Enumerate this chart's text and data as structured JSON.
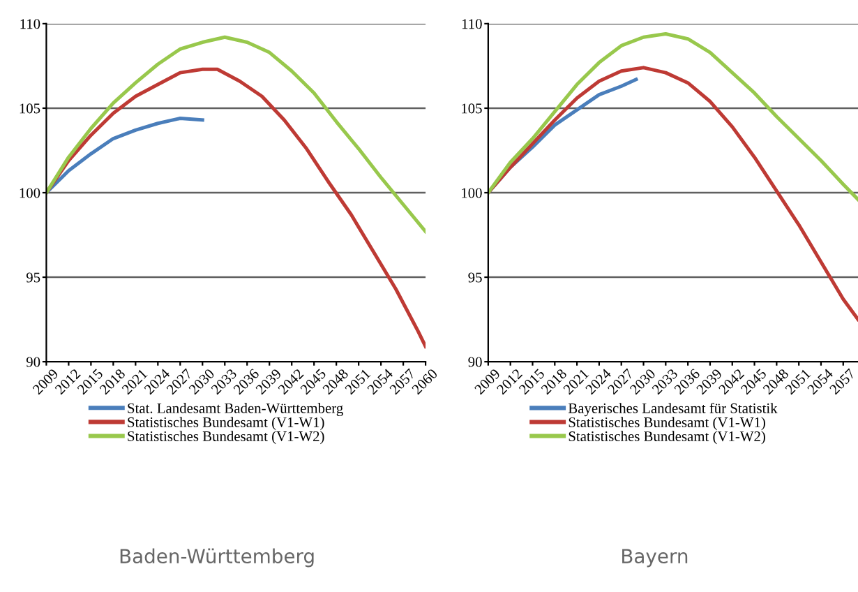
{
  "chart_data": [
    {
      "type": "line",
      "xlim": [
        2009,
        2060
      ],
      "xticks": [
        2009,
        2012,
        2015,
        2018,
        2021,
        2024,
        2027,
        2030,
        2033,
        2036,
        2039,
        2042,
        2045,
        2048,
        2051,
        2054,
        2057,
        2060
      ],
      "ylim": [
        90,
        110
      ],
      "yticks": [
        90,
        95,
        100,
        105,
        110
      ],
      "grid": "y",
      "legend": "bottom",
      "line_style": "solid",
      "annotations": [
        "Baden-Württemberg"
      ],
      "series": [
        {
          "name": "Stat. Landesamt Baden-Württemberg",
          "color": "#4a7ebb",
          "x": [
            2009,
            2012,
            2015,
            2018,
            2021,
            2024,
            2027,
            2030
          ],
          "values": [
            100,
            101.3,
            102.3,
            103.2,
            103.7,
            104.1,
            104.4,
            104.3
          ]
        },
        {
          "name": "Statistisches Bundesamt (V1-W1)",
          "color": "#be3a34",
          "x": [
            2009,
            2012,
            2015,
            2018,
            2021,
            2024,
            2027,
            2030,
            2032,
            2035,
            2038,
            2041,
            2044,
            2047,
            2050,
            2053,
            2056,
            2059,
            2060
          ],
          "values": [
            100,
            101.9,
            103.4,
            104.7,
            105.7,
            106.4,
            107.1,
            107.3,
            107.3,
            106.6,
            105.7,
            104.3,
            102.6,
            100.6,
            98.7,
            96.5,
            94.3,
            91.8,
            90.9
          ]
        },
        {
          "name": "Statistisches Bundesamt (V1-W2)",
          "color": "#98c84c",
          "x": [
            2009,
            2012,
            2015,
            2018,
            2021,
            2024,
            2027,
            2030,
            2033,
            2036,
            2039,
            2042,
            2045,
            2048,
            2051,
            2054,
            2057,
            2060
          ],
          "values": [
            100,
            102.1,
            103.8,
            105.3,
            106.5,
            107.6,
            108.5,
            108.9,
            109.2,
            108.9,
            108.3,
            107.2,
            105.9,
            104.2,
            102.6,
            100.9,
            99.3,
            97.7
          ]
        }
      ]
    },
    {
      "type": "line",
      "xlim": [
        2009,
        2059
      ],
      "xticks": [
        2009,
        2012,
        2015,
        2018,
        2021,
        2024,
        2027,
        2030,
        2033,
        2036,
        2039,
        2042,
        2045,
        2048,
        2051,
        2054,
        2057
      ],
      "ylim": [
        90,
        110
      ],
      "yticks": [
        90,
        95,
        100,
        105,
        110
      ],
      "grid": "y",
      "legend": "bottom",
      "line_style": "solid",
      "annotations": [
        "Bayern"
      ],
      "series": [
        {
          "name": "Bayerisches Landesamt für Statistik",
          "color": "#4a7ebb",
          "x": [
            2009,
            2012,
            2015,
            2018,
            2021,
            2024,
            2027,
            2029
          ],
          "values": [
            100,
            101.5,
            102.7,
            104.0,
            104.9,
            105.8,
            106.3,
            106.7
          ]
        },
        {
          "name": "Statistisches Bundesamt (V1-W1)",
          "color": "#be3a34",
          "x": [
            2009,
            2012,
            2015,
            2018,
            2021,
            2024,
            2027,
            2030,
            2033,
            2036,
            2039,
            2042,
            2045,
            2048,
            2051,
            2054,
            2057,
            2059
          ],
          "values": [
            100,
            101.5,
            102.9,
            104.3,
            105.6,
            106.6,
            107.2,
            107.4,
            107.1,
            106.5,
            105.4,
            103.9,
            102.1,
            100.1,
            98.1,
            95.9,
            93.7,
            92.5
          ]
        },
        {
          "name": "Statistisches Bundesamt (V1-W2)",
          "color": "#98c84c",
          "x": [
            2009,
            2012,
            2015,
            2018,
            2021,
            2024,
            2027,
            2030,
            2033,
            2036,
            2039,
            2042,
            2045,
            2048,
            2051,
            2054,
            2057,
            2059
          ],
          "values": [
            100,
            101.8,
            103.2,
            104.8,
            106.4,
            107.7,
            108.7,
            109.2,
            109.4,
            109.1,
            108.3,
            107.1,
            105.9,
            104.5,
            103.2,
            101.9,
            100.5,
            99.6
          ]
        }
      ]
    }
  ]
}
